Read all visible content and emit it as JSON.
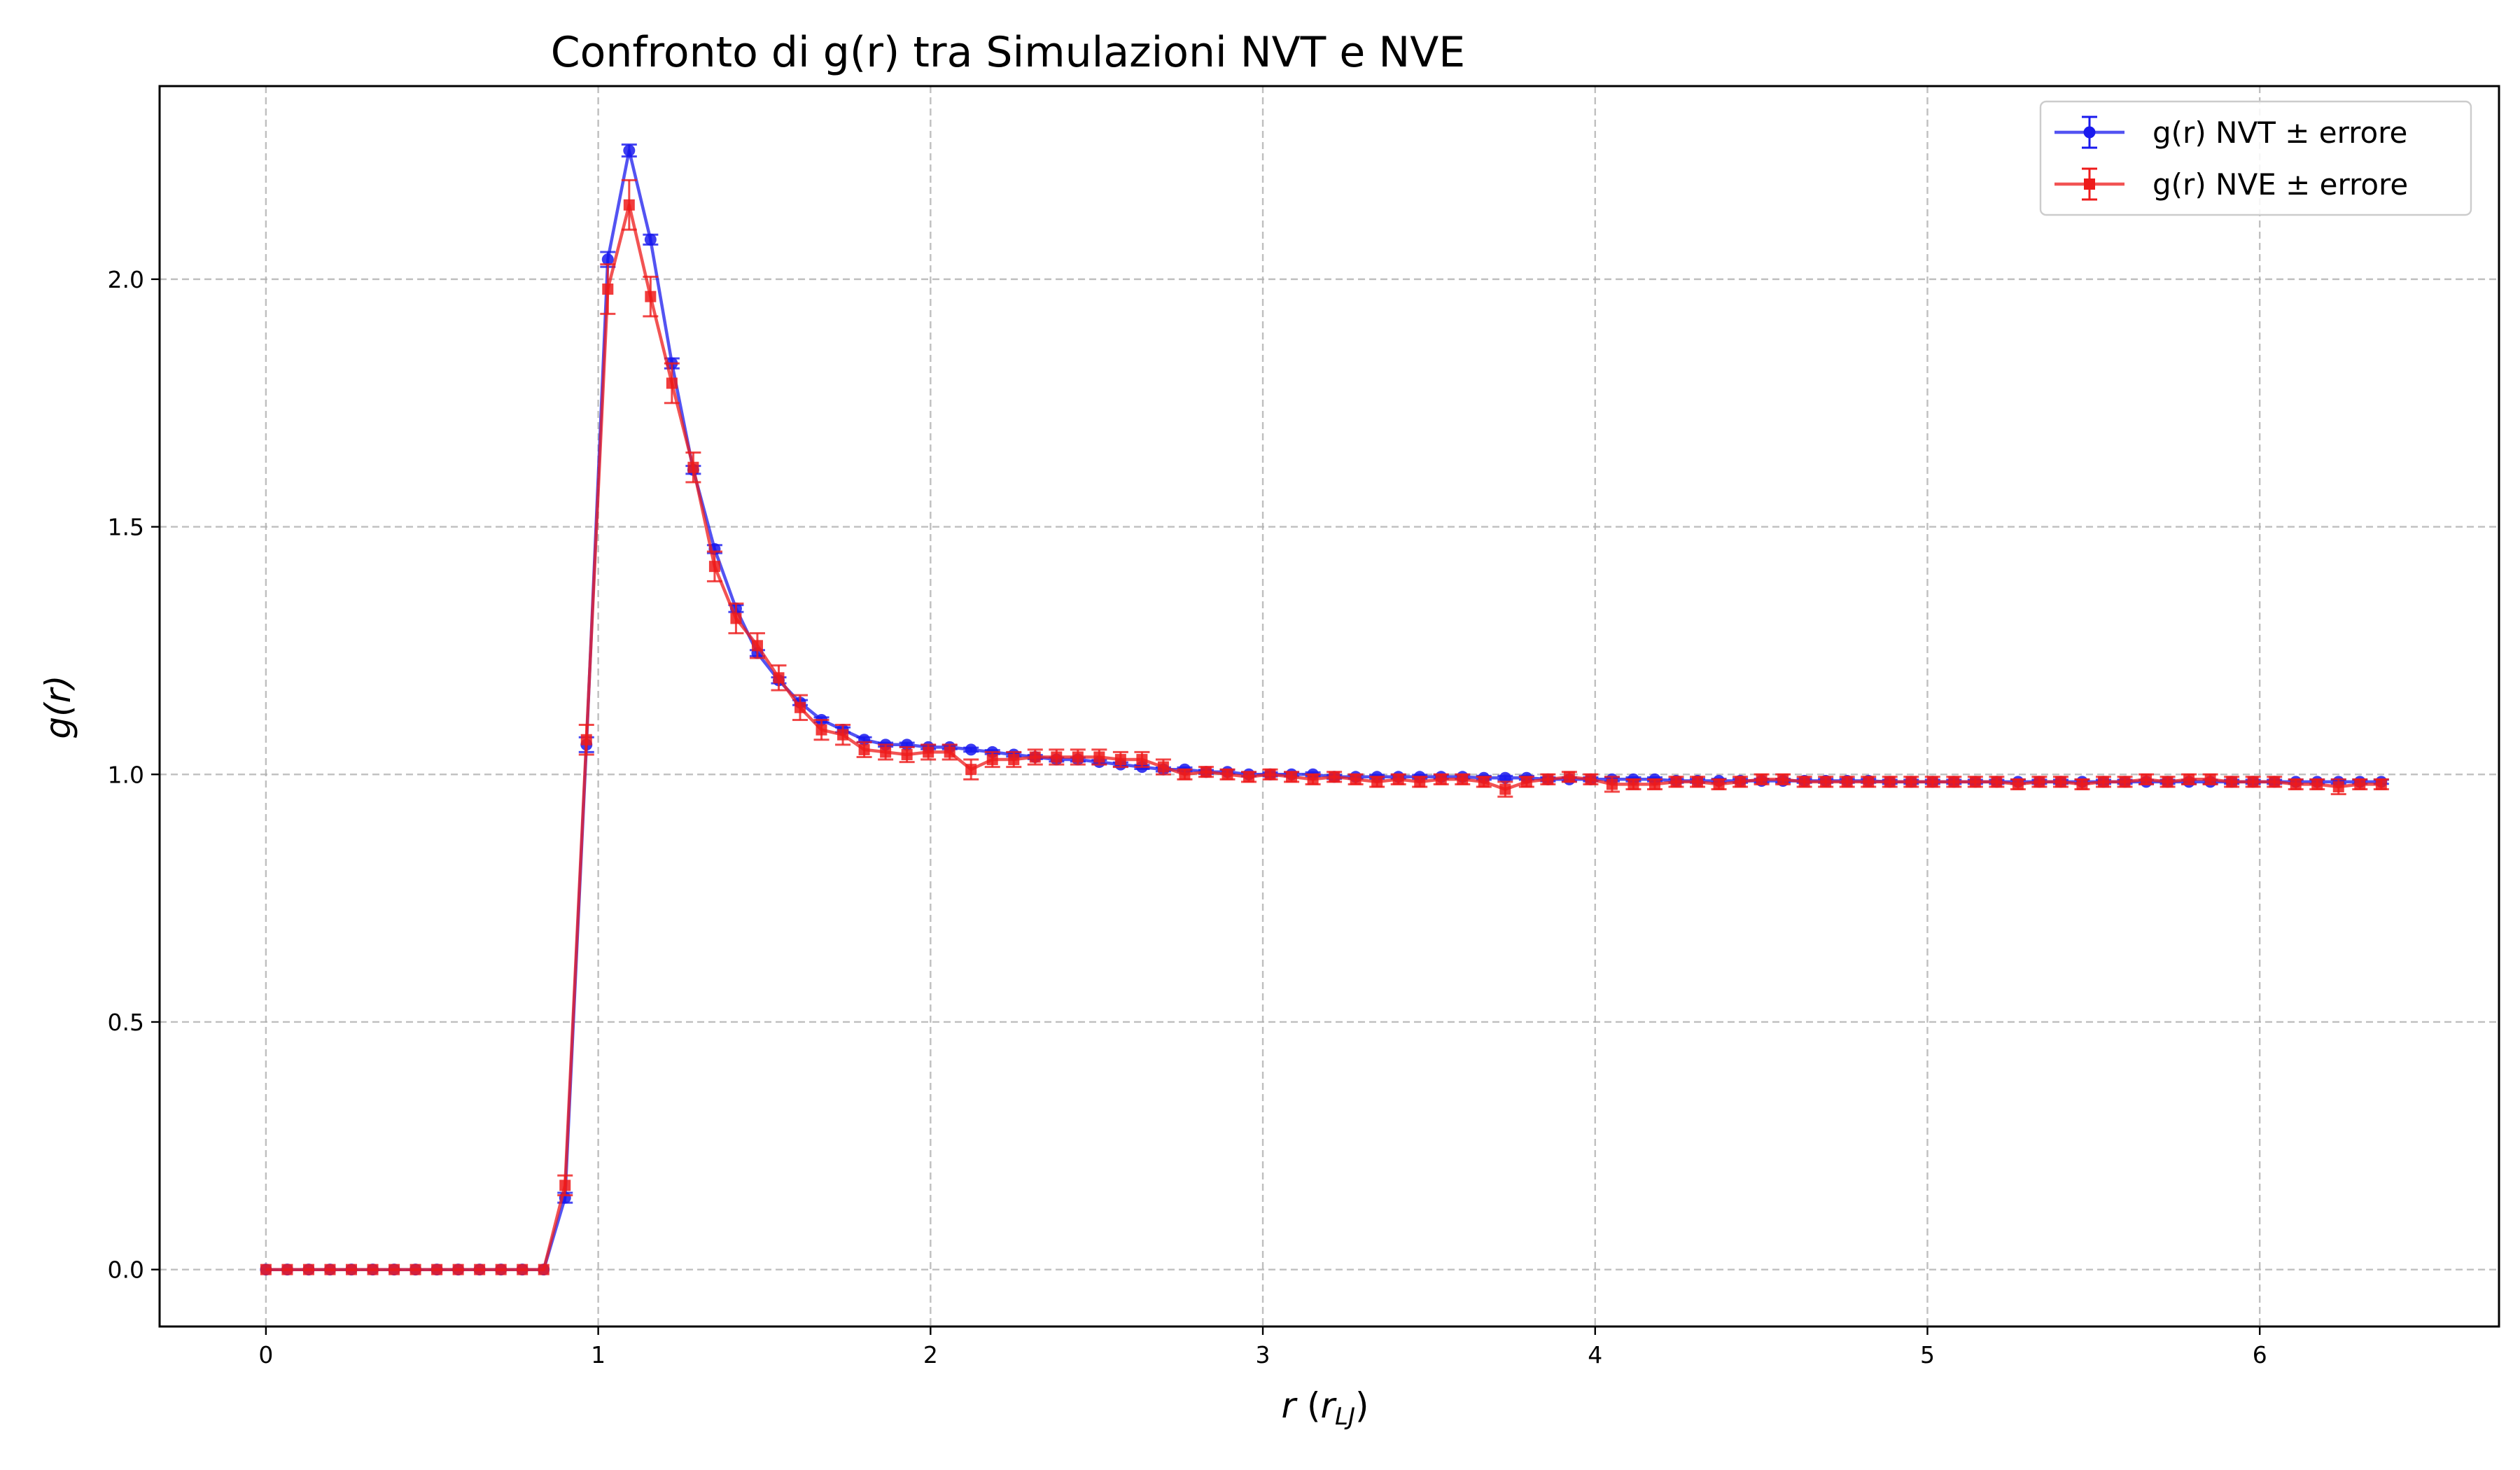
{
  "chart_data": {
    "type": "line",
    "title": "Confronto di g(r) tra Simulazioni NVT e NVE",
    "xlabel": "r",
    "xlabel_unit": "r",
    "xlabel_unit_sub": "LJ",
    "ylabel": "g(r)",
    "xlim": [
      -0.32,
      6.72
    ],
    "ylim": [
      -0.115,
      2.39
    ],
    "xticks": [
      0,
      1,
      2,
      3,
      4,
      5,
      6
    ],
    "xtick_labels": [
      "0",
      "1",
      "2",
      "3",
      "4",
      "5",
      "6"
    ],
    "yticks": [
      0.0,
      0.5,
      1.0,
      1.5,
      2.0
    ],
    "ytick_labels": [
      "0.0",
      "0.5",
      "1.0",
      "1.5",
      "2.0"
    ],
    "grid": true,
    "legend_position": "top-right",
    "x_start": 0.0,
    "x_step": 0.0643,
    "series": [
      {
        "name": "g(r) NVT ± errore",
        "color": "#1a1aee",
        "marker": "circle",
        "values": [
          0,
          0,
          0,
          0,
          0,
          0,
          0,
          0,
          0,
          0,
          0,
          0,
          0,
          0,
          0.145,
          1.06,
          2.04,
          2.26,
          2.08,
          1.83,
          1.615,
          1.455,
          1.335,
          1.245,
          1.19,
          1.145,
          1.11,
          1.09,
          1.07,
          1.06,
          1.06,
          1.055,
          1.055,
          1.05,
          1.045,
          1.04,
          1.035,
          1.03,
          1.03,
          1.025,
          1.02,
          1.015,
          1.01,
          1.01,
          1.005,
          1.005,
          1.0,
          1.0,
          1.0,
          1.0,
          0.995,
          0.995,
          0.995,
          0.995,
          0.995,
          0.995,
          0.995,
          0.993,
          0.993,
          0.993,
          0.99,
          0.99,
          0.99,
          0.99,
          0.99,
          0.99,
          0.987,
          0.987,
          0.987,
          0.987,
          0.987,
          0.987,
          0.987,
          0.987,
          0.987,
          0.987,
          0.985,
          0.985,
          0.985,
          0.985,
          0.985,
          0.985,
          0.985,
          0.985,
          0.985,
          0.985,
          0.985,
          0.985,
          0.985,
          0.985,
          0.985,
          0.985,
          0.985,
          0.985,
          0.985,
          0.985,
          0.985,
          0.985,
          0.985,
          0.985
        ],
        "errors": [
          0,
          0,
          0,
          0,
          0,
          0,
          0,
          0,
          0,
          0,
          0,
          0,
          0,
          0,
          0.01,
          0.015,
          0.015,
          0.012,
          0.01,
          0.01,
          0.008,
          0.008,
          0.007,
          0.006,
          0.006,
          0.005,
          0.005,
          0.005,
          0.005,
          0.004,
          0.004,
          0.004,
          0.004,
          0.004,
          0.004,
          0.004,
          0.004,
          0.004,
          0.004,
          0.004,
          0.004,
          0.004,
          0.004,
          0.004,
          0.004,
          0.004,
          0.004,
          0.004,
          0.004,
          0.004,
          0.004,
          0.004,
          0.004,
          0.004,
          0.004,
          0.004,
          0.004,
          0.004,
          0.004,
          0.004,
          0.004,
          0.004,
          0.004,
          0.004,
          0.004,
          0.004,
          0.004,
          0.004,
          0.004,
          0.004,
          0.004,
          0.004,
          0.004,
          0.004,
          0.004,
          0.004,
          0.004,
          0.004,
          0.004,
          0.004,
          0.004,
          0.004,
          0.004,
          0.004,
          0.004,
          0.004,
          0.004,
          0.004,
          0.004,
          0.004,
          0.004,
          0.004,
          0.004,
          0.004,
          0.004,
          0.004,
          0.004,
          0.004,
          0.004,
          0.004
        ]
      },
      {
        "name": "g(r) NVE ± errore",
        "color": "#ee1a1a",
        "marker": "square",
        "values": [
          0,
          0,
          0,
          0,
          0,
          0,
          0,
          0,
          0,
          0,
          0,
          0,
          0,
          0,
          0.17,
          1.07,
          1.98,
          2.15,
          1.965,
          1.79,
          1.62,
          1.42,
          1.315,
          1.26,
          1.195,
          1.135,
          1.09,
          1.08,
          1.05,
          1.045,
          1.04,
          1.045,
          1.045,
          1.01,
          1.03,
          1.03,
          1.035,
          1.035,
          1.035,
          1.035,
          1.03,
          1.03,
          1.015,
          1.0,
          1.005,
          1.0,
          0.995,
          1.0,
          0.995,
          0.99,
          0.995,
          0.99,
          0.985,
          0.99,
          0.985,
          0.99,
          0.99,
          0.985,
          0.97,
          0.985,
          0.99,
          0.995,
          0.99,
          0.98,
          0.98,
          0.98,
          0.985,
          0.985,
          0.98,
          0.985,
          0.99,
          0.99,
          0.985,
          0.985,
          0.985,
          0.985,
          0.985,
          0.985,
          0.985,
          0.985,
          0.985,
          0.985,
          0.98,
          0.985,
          0.985,
          0.98,
          0.985,
          0.985,
          0.99,
          0.985,
          0.99,
          0.99,
          0.985,
          0.985,
          0.985,
          0.98,
          0.98,
          0.975,
          0.98,
          0.98
        ],
        "errors": [
          0,
          0,
          0,
          0,
          0,
          0,
          0,
          0,
          0,
          0,
          0,
          0,
          0,
          0,
          0.02,
          0.03,
          0.05,
          0.05,
          0.04,
          0.04,
          0.03,
          0.03,
          0.03,
          0.025,
          0.025,
          0.025,
          0.02,
          0.02,
          0.015,
          0.015,
          0.015,
          0.015,
          0.015,
          0.02,
          0.015,
          0.015,
          0.015,
          0.015,
          0.015,
          0.015,
          0.015,
          0.015,
          0.015,
          0.01,
          0.01,
          0.01,
          0.01,
          0.01,
          0.01,
          0.01,
          0.01,
          0.01,
          0.01,
          0.01,
          0.01,
          0.01,
          0.01,
          0.01,
          0.015,
          0.01,
          0.01,
          0.01,
          0.01,
          0.015,
          0.01,
          0.01,
          0.01,
          0.01,
          0.01,
          0.01,
          0.01,
          0.01,
          0.01,
          0.01,
          0.01,
          0.01,
          0.01,
          0.01,
          0.01,
          0.01,
          0.01,
          0.01,
          0.01,
          0.01,
          0.01,
          0.01,
          0.01,
          0.01,
          0.01,
          0.01,
          0.01,
          0.01,
          0.01,
          0.01,
          0.01,
          0.01,
          0.01,
          0.015,
          0.01,
          0.01
        ]
      }
    ]
  }
}
